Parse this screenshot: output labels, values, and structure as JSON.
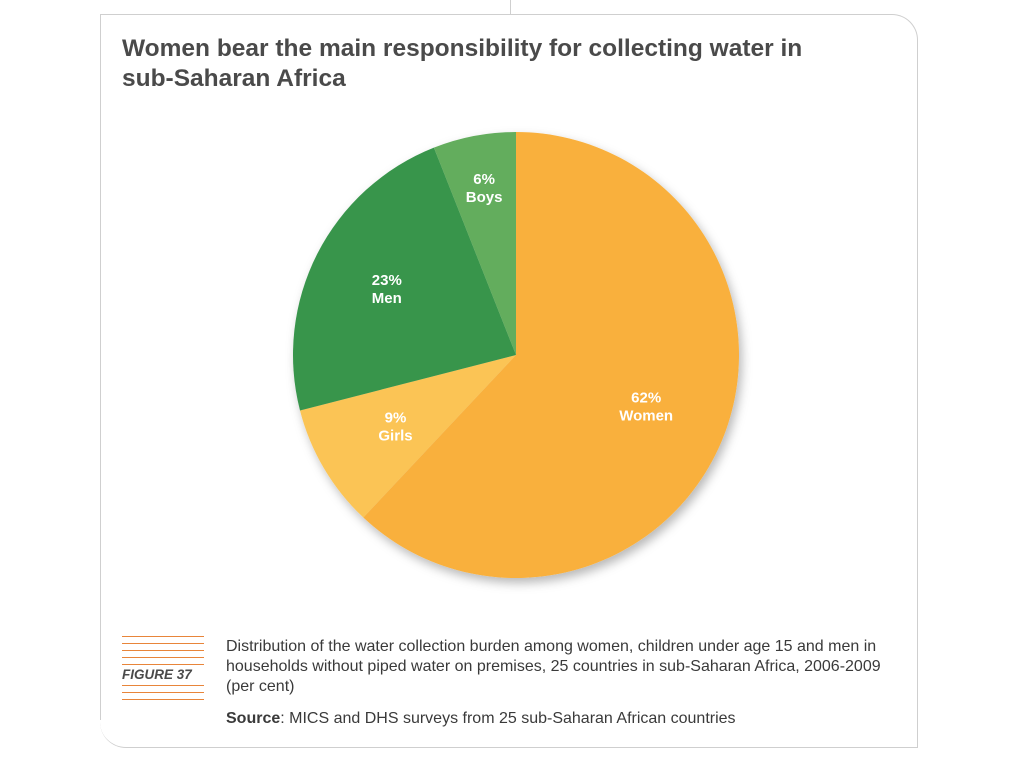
{
  "title": "Women bear the main responsibility for collecting water in sub-Saharan Africa",
  "figure_label": "FIGURE 37",
  "caption": "Distribution of the water collection burden among women, children under age 15 and men in households without piped water on premises, 25 countries in sub-Saharan Africa, 2006-2009 (per cent)",
  "source": {
    "label": "Source",
    "text": ": MICS and DHS surveys from 25 sub-Saharan African countries"
  },
  "chart_data": {
    "type": "pie",
    "title": "Women bear the main responsibility for collecting water in sub-Saharan Africa",
    "unit": "per cent",
    "slices": [
      {
        "name": "Women",
        "value": 62,
        "label_value": "62%",
        "color": "#f9b03c"
      },
      {
        "name": "Girls",
        "value": 9,
        "label_value": "9%",
        "color": "#fbc455"
      },
      {
        "name": "Men",
        "value": 23,
        "label_value": "23%",
        "color": "#37954b"
      },
      {
        "name": "Boys",
        "value": 6,
        "label_value": "6%",
        "color": "#63ad5d"
      }
    ],
    "start": "12 o'clock",
    "direction": "clockwise"
  }
}
